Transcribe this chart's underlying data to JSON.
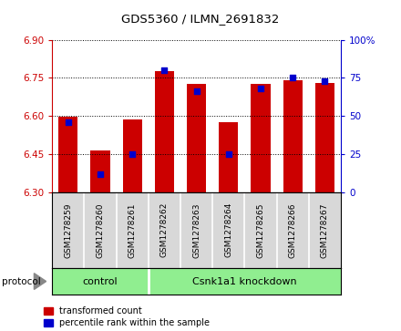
{
  "title": "GDS5360 / ILMN_2691832",
  "samples": [
    "GSM1278259",
    "GSM1278260",
    "GSM1278261",
    "GSM1278262",
    "GSM1278263",
    "GSM1278264",
    "GSM1278265",
    "GSM1278266",
    "GSM1278267"
  ],
  "bar_values": [
    6.595,
    6.465,
    6.585,
    6.775,
    6.725,
    6.575,
    6.725,
    6.74,
    6.73
  ],
  "percentile_values": [
    46,
    12,
    25,
    80,
    66,
    25,
    68,
    75,
    73
  ],
  "bar_bottom": 6.3,
  "ylim_left": [
    6.3,
    6.9
  ],
  "ylim_right": [
    0,
    100
  ],
  "yticks_left": [
    6.3,
    6.45,
    6.6,
    6.75,
    6.9
  ],
  "yticks_right": [
    0,
    25,
    50,
    75,
    100
  ],
  "ytick_labels_right": [
    "0",
    "25",
    "50",
    "75",
    "100%"
  ],
  "bar_color": "#cc0000",
  "dot_color": "#0000cc",
  "left_label_color": "#cc0000",
  "right_label_color": "#0000cc",
  "bar_width": 0.6,
  "legend_entries": [
    {
      "label": "transformed count",
      "color": "#cc0000"
    },
    {
      "label": "percentile rank within the sample",
      "color": "#0000cc"
    }
  ]
}
